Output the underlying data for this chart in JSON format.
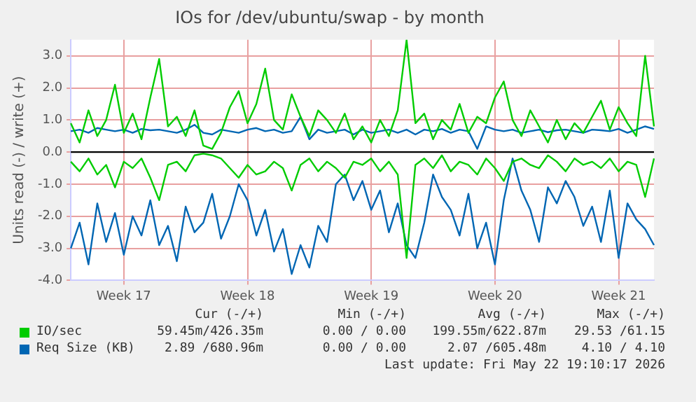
{
  "chart_data": {
    "type": "line",
    "title": "IOs for /dev/ubuntu/swap - by month",
    "ylabel": "Units read (-) / write (+)",
    "categories": [
      null,
      null,
      null,
      null,
      null,
      null,
      "Week 17",
      null,
      null,
      null,
      null,
      null,
      null,
      null,
      null,
      null,
      null,
      null,
      null,
      null,
      "Week 18",
      null,
      null,
      null,
      null,
      null,
      null,
      null,
      null,
      null,
      null,
      null,
      null,
      null,
      "Week 19",
      null,
      null,
      null,
      null,
      null,
      null,
      null,
      null,
      null,
      null,
      null,
      null,
      null,
      "Week 20",
      null,
      null,
      null,
      null,
      null,
      null,
      null,
      null,
      null,
      null,
      null,
      null,
      null,
      "Week 21",
      null,
      null,
      null,
      null
    ],
    "ylim": [
      -4,
      3.5
    ],
    "yticks": [
      {
        "value": -4,
        "label": "-4.0"
      },
      {
        "value": -3,
        "label": "-3.0"
      },
      {
        "value": -2,
        "label": "-2.0"
      },
      {
        "value": -1,
        "label": "-1.0"
      },
      {
        "value": 0,
        "label": "0.0"
      },
      {
        "value": 1,
        "label": "1.0"
      },
      {
        "value": 2,
        "label": "2.0"
      },
      {
        "value": 3,
        "label": "3.0"
      }
    ],
    "grid": true,
    "legend": "bottom",
    "marker": "none",
    "line_style": "solid",
    "ref_lines": [
      {
        "axis": "y",
        "value": 0,
        "label": null,
        "color": "#000000"
      }
    ],
    "series": [
      {
        "name": "IO/sec",
        "color": "#00cc00",
        "values": [
          0.9,
          0.3,
          1.3,
          0.5,
          1.0,
          2.1,
          0.6,
          1.2,
          0.4,
          1.7,
          2.9,
          0.8,
          1.1,
          0.5,
          1.3,
          0.2,
          0.1,
          0.6,
          1.4,
          1.9,
          0.9,
          1.5,
          2.6,
          1.0,
          0.7,
          1.8,
          1.1,
          0.5,
          1.3,
          1.0,
          0.6,
          1.2,
          0.4,
          0.8,
          0.3,
          1.0,
          0.5,
          1.3,
          3.5,
          0.9,
          1.2,
          0.4,
          1.0,
          0.7,
          1.5,
          0.6,
          1.1,
          0.9,
          1.7,
          2.2,
          1.0,
          0.5,
          1.3,
          0.8,
          0.3,
          1.0,
          0.4,
          0.9,
          0.6,
          1.1,
          1.6,
          0.7,
          1.4,
          0.9,
          0.5,
          3.0,
          0.8
        ]
      },
      {
        "color": "#00cc00",
        "values": [
          -0.3,
          -0.6,
          -0.2,
          -0.7,
          -0.4,
          -1.1,
          -0.3,
          -0.5,
          -0.2,
          -0.8,
          -1.5,
          -0.4,
          -0.3,
          -0.6,
          -0.1,
          -0.05,
          -0.1,
          -0.2,
          -0.5,
          -0.8,
          -0.4,
          -0.7,
          -0.6,
          -0.3,
          -0.5,
          -1.2,
          -0.4,
          -0.2,
          -0.6,
          -0.3,
          -0.5,
          -0.8,
          -0.3,
          -0.4,
          -0.2,
          -0.6,
          -0.3,
          -0.7,
          -3.3,
          -0.4,
          -0.2,
          -0.5,
          -0.1,
          -0.6,
          -0.3,
          -0.4,
          -0.7,
          -0.2,
          -0.5,
          -0.9,
          -0.3,
          -0.2,
          -0.4,
          -0.5,
          -0.1,
          -0.3,
          -0.6,
          -0.2,
          -0.4,
          -0.3,
          -0.5,
          -0.2,
          -0.6,
          -0.3,
          -0.4,
          -1.4,
          -0.2
        ]
      },
      {
        "name": "Req Size (KB)",
        "color": "#0066b3",
        "values": [
          0.65,
          0.7,
          0.6,
          0.75,
          0.7,
          0.65,
          0.7,
          0.6,
          0.72,
          0.68,
          0.7,
          0.65,
          0.6,
          0.7,
          0.85,
          0.6,
          0.55,
          0.7,
          0.65,
          0.6,
          0.7,
          0.75,
          0.65,
          0.7,
          0.6,
          0.65,
          1.1,
          0.4,
          0.7,
          0.6,
          0.65,
          0.7,
          0.55,
          0.7,
          0.6,
          0.65,
          0.7,
          0.6,
          0.7,
          0.55,
          0.7,
          0.65,
          0.72,
          0.6,
          0.7,
          0.65,
          0.1,
          0.8,
          0.7,
          0.65,
          0.7,
          0.6,
          0.65,
          0.7,
          0.62,
          0.68,
          0.7,
          0.65,
          0.6,
          0.7,
          0.68,
          0.65,
          0.72,
          0.6,
          0.7,
          0.8,
          0.72
        ]
      },
      {
        "color": "#0066b3",
        "values": [
          -3.0,
          -2.2,
          -3.5,
          -1.6,
          -2.8,
          -1.9,
          -3.2,
          -2.0,
          -2.6,
          -1.5,
          -2.9,
          -2.3,
          -3.4,
          -1.7,
          -2.5,
          -2.2,
          -1.3,
          -2.7,
          -2.0,
          -1.0,
          -1.5,
          -2.6,
          -1.8,
          -3.1,
          -2.4,
          -3.8,
          -2.9,
          -3.6,
          -2.3,
          -2.8,
          -1.0,
          -0.7,
          -1.5,
          -0.9,
          -1.8,
          -1.2,
          -2.5,
          -1.6,
          -2.9,
          -3.3,
          -2.2,
          -0.7,
          -1.4,
          -1.8,
          -2.6,
          -1.3,
          -3.0,
          -2.2,
          -3.5,
          -1.5,
          -0.2,
          -1.2,
          -1.8,
          -2.8,
          -1.1,
          -1.6,
          -0.9,
          -1.4,
          -2.3,
          -1.7,
          -2.8,
          -1.2,
          -3.3,
          -1.6,
          -2.1,
          -2.4,
          -2.9
        ]
      }
    ],
    "annotations": [
      "Cur (-/+)",
      "Min (-/+)",
      "Avg (-/+)",
      "Max (-/+)",
      "59.45m/426.35m",
      "0.00 / 0.00",
      "199.55m/622.87m",
      "29.53 /61.15",
      "2.89 /680.96m",
      "0.00 / 0.00",
      "2.07 /605.48m",
      "4.10 / 4.10",
      "Last update: Fri May 22 19:10:17 2026"
    ]
  }
}
